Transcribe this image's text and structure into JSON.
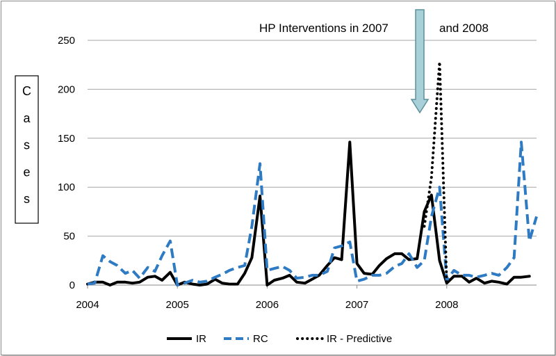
{
  "chart_data": {
    "type": "line",
    "title": "",
    "xlabel": "",
    "ylabel": "Cases",
    "ylim": [
      0,
      250
    ],
    "yticks": [
      0,
      50,
      100,
      150,
      200,
      250
    ],
    "xticks": [
      "2004",
      "2005",
      "2006",
      "2007",
      "2008"
    ],
    "grid": "horizontal",
    "legend_position": "bottom",
    "annotations": [
      {
        "text": "HP  Interventions in 2007",
        "type": "text"
      },
      {
        "text": "and 2008",
        "type": "text"
      },
      {
        "type": "down-arrow",
        "at_year": 2007.7,
        "color": "#a9d0d8"
      }
    ],
    "series": [
      {
        "name": "IR",
        "color": "#000000",
        "style": "solid",
        "points": [
          [
            2004.0,
            1
          ],
          [
            2004.08,
            3
          ],
          [
            2004.17,
            3
          ],
          [
            2004.25,
            0
          ],
          [
            2004.33,
            3
          ],
          [
            2004.42,
            3
          ],
          [
            2004.5,
            2
          ],
          [
            2004.58,
            3
          ],
          [
            2004.67,
            8
          ],
          [
            2004.75,
            9
          ],
          [
            2004.83,
            5
          ],
          [
            2004.92,
            13
          ],
          [
            2005.0,
            0
          ],
          [
            2005.08,
            3
          ],
          [
            2005.17,
            1
          ],
          [
            2005.25,
            0
          ],
          [
            2005.33,
            1
          ],
          [
            2005.42,
            6
          ],
          [
            2005.5,
            2
          ],
          [
            2005.58,
            1
          ],
          [
            2005.67,
            1
          ],
          [
            2005.75,
            12
          ],
          [
            2005.83,
            28
          ],
          [
            2005.92,
            91
          ],
          [
            2006.0,
            0
          ],
          [
            2006.08,
            5
          ],
          [
            2006.17,
            7
          ],
          [
            2006.25,
            10
          ],
          [
            2006.33,
            3
          ],
          [
            2006.42,
            2
          ],
          [
            2006.5,
            6
          ],
          [
            2006.58,
            10
          ],
          [
            2006.67,
            20
          ],
          [
            2006.75,
            28
          ],
          [
            2006.83,
            26
          ],
          [
            2006.92,
            146
          ],
          [
            2007.0,
            22
          ],
          [
            2007.08,
            12
          ],
          [
            2007.17,
            11
          ],
          [
            2007.25,
            20
          ],
          [
            2007.33,
            27
          ],
          [
            2007.42,
            32
          ],
          [
            2007.5,
            32
          ],
          [
            2007.58,
            26
          ],
          [
            2007.67,
            27
          ],
          [
            2007.75,
            75
          ],
          [
            2007.83,
            92
          ],
          [
            2007.92,
            25
          ],
          [
            2008.0,
            2
          ],
          [
            2008.08,
            9
          ],
          [
            2008.17,
            9
          ],
          [
            2008.25,
            3
          ],
          [
            2008.33,
            7
          ],
          [
            2008.42,
            2
          ],
          [
            2008.5,
            4
          ],
          [
            2008.58,
            3
          ],
          [
            2008.67,
            1
          ],
          [
            2008.75,
            8
          ],
          [
            2008.83,
            8
          ],
          [
            2008.92,
            9
          ]
        ]
      },
      {
        "name": "RC",
        "color": "#2e7bc4",
        "style": "dashed",
        "points": [
          [
            2004.0,
            1
          ],
          [
            2004.08,
            2
          ],
          [
            2004.17,
            30
          ],
          [
            2004.25,
            24
          ],
          [
            2004.33,
            20
          ],
          [
            2004.42,
            12
          ],
          [
            2004.5,
            15
          ],
          [
            2004.58,
            7
          ],
          [
            2004.67,
            18
          ],
          [
            2004.75,
            14
          ],
          [
            2004.83,
            30
          ],
          [
            2004.92,
            45
          ],
          [
            2005.0,
            0
          ],
          [
            2005.08,
            2
          ],
          [
            2005.17,
            5
          ],
          [
            2005.25,
            3
          ],
          [
            2005.33,
            4
          ],
          [
            2005.42,
            8
          ],
          [
            2005.5,
            11
          ],
          [
            2005.58,
            15
          ],
          [
            2005.67,
            18
          ],
          [
            2005.75,
            20
          ],
          [
            2005.83,
            60
          ],
          [
            2005.92,
            124
          ],
          [
            2006.0,
            15
          ],
          [
            2006.08,
            17
          ],
          [
            2006.17,
            19
          ],
          [
            2006.25,
            15
          ],
          [
            2006.33,
            7
          ],
          [
            2006.42,
            8
          ],
          [
            2006.5,
            10
          ],
          [
            2006.58,
            10
          ],
          [
            2006.67,
            14
          ],
          [
            2006.75,
            38
          ],
          [
            2006.83,
            40
          ],
          [
            2006.92,
            44
          ],
          [
            2007.0,
            4
          ],
          [
            2007.08,
            6
          ],
          [
            2007.17,
            10
          ],
          [
            2007.25,
            10
          ],
          [
            2007.33,
            12
          ],
          [
            2007.42,
            19
          ],
          [
            2007.5,
            22
          ],
          [
            2007.58,
            32
          ],
          [
            2007.67,
            18
          ],
          [
            2007.75,
            25
          ],
          [
            2007.83,
            70
          ],
          [
            2007.92,
            100
          ],
          [
            2008.0,
            5
          ],
          [
            2008.08,
            15
          ],
          [
            2008.17,
            10
          ],
          [
            2008.25,
            10
          ],
          [
            2008.33,
            8
          ],
          [
            2008.42,
            10
          ],
          [
            2008.5,
            12
          ],
          [
            2008.58,
            10
          ],
          [
            2008.67,
            18
          ],
          [
            2008.75,
            28
          ],
          [
            2008.83,
            146
          ],
          [
            2008.92,
            45
          ],
          [
            2009.0,
            70
          ]
        ]
      },
      {
        "name": "IR - Predictive",
        "color": "#000000",
        "style": "dotted",
        "points": [
          [
            2007.75,
            60
          ],
          [
            2007.83,
            110
          ],
          [
            2007.92,
            228
          ],
          [
            2008.0,
            2
          ]
        ]
      }
    ]
  }
}
